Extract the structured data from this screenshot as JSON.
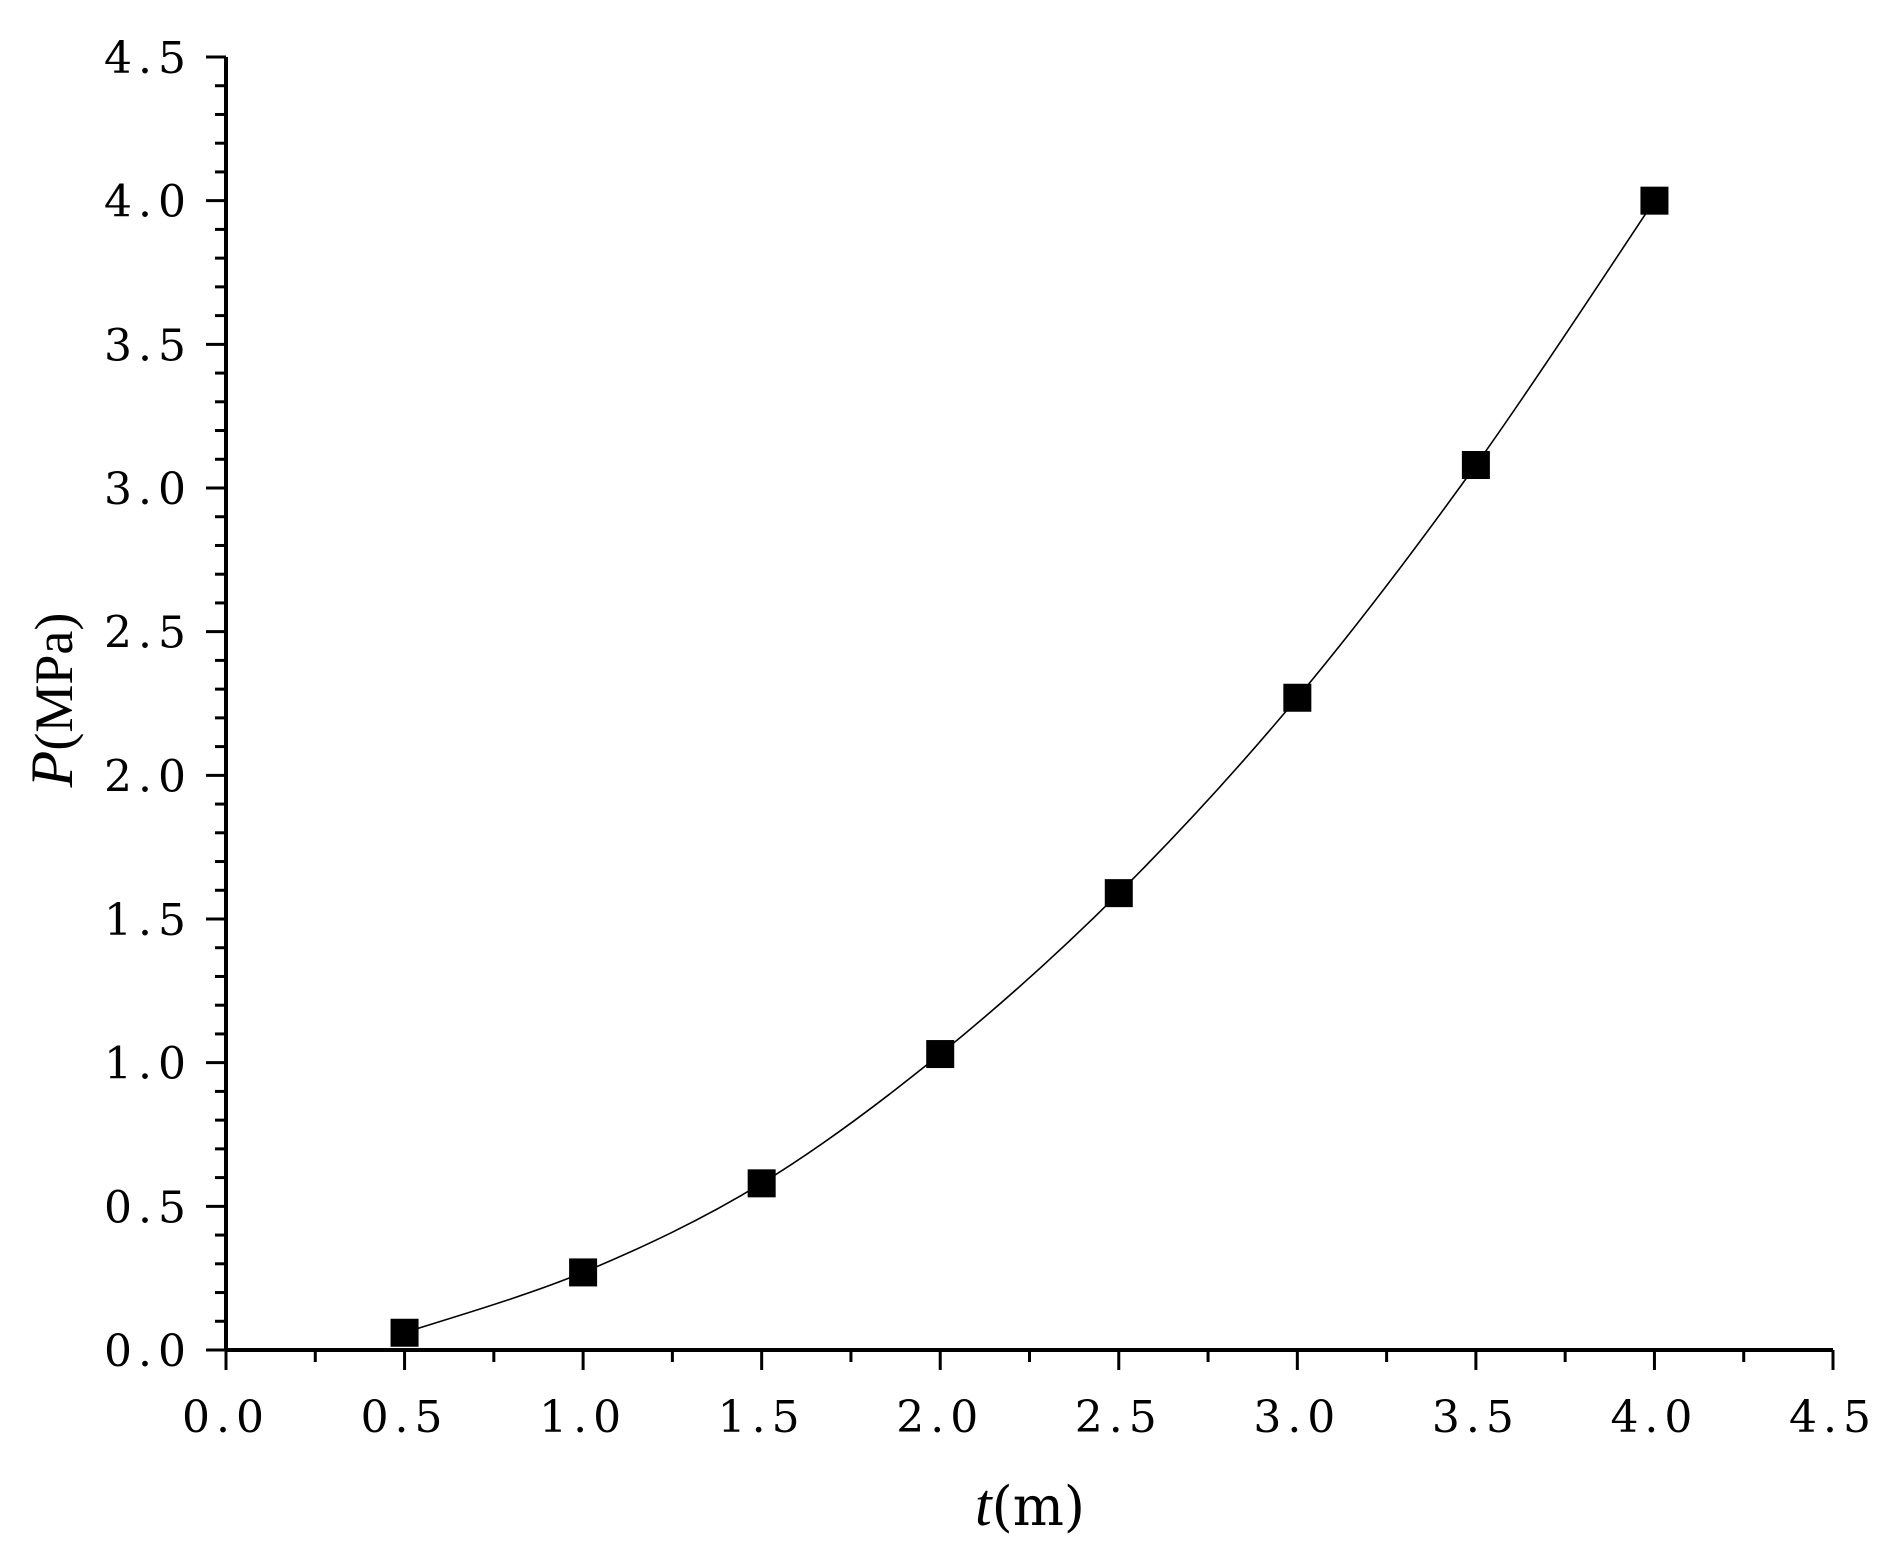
{
  "chart_data": {
    "type": "line",
    "title": "",
    "xlabel": {
      "var": "t",
      "unit": "(m)"
    },
    "ylabel": {
      "var": "P",
      "unit": "(MPa)"
    },
    "xlim": [
      0,
      4.5
    ],
    "ylim": [
      0,
      4.5
    ],
    "x_ticks": [
      "0.0",
      "0.5",
      "1.0",
      "1.5",
      "2.0",
      "2.5",
      "3.0",
      "3.5",
      "4.0",
      "4.5"
    ],
    "y_ticks": [
      "0.0",
      "0.5",
      "1.0",
      "1.5",
      "2.0",
      "2.5",
      "3.0",
      "3.5",
      "4.0",
      "4.5"
    ],
    "grid": false,
    "marker": "square",
    "series": [
      {
        "x": [
          0.5,
          1.0,
          1.5,
          2.0,
          2.5,
          3.0,
          3.5,
          4.0
        ],
        "y": [
          0.06,
          0.27,
          0.58,
          1.03,
          1.59,
          2.27,
          3.08,
          4.0
        ]
      }
    ],
    "colors": {
      "line": "#000000",
      "marker": "#000000",
      "axis": "#000000"
    }
  }
}
